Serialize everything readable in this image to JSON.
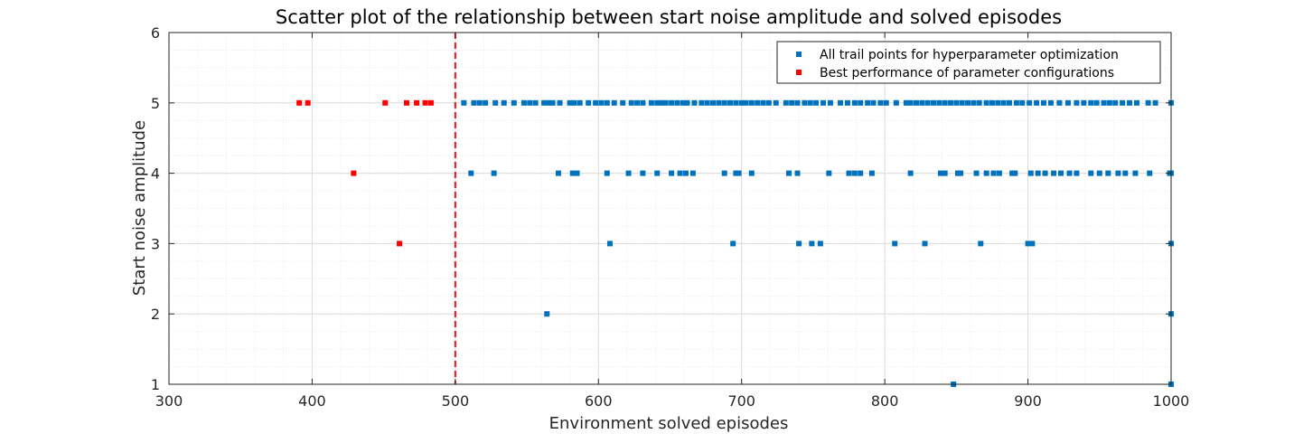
{
  "chart_data": {
    "type": "scatter",
    "title": "Scatter plot of the relationship between start noise amplitude and solved episodes",
    "xlabel": "Environment solved episodes",
    "ylabel": "Start noise amplitude",
    "xlim": [
      300,
      1000
    ],
    "ylim": [
      1,
      6
    ],
    "xticks": [
      "300",
      "400",
      "500",
      "600",
      "700",
      "800",
      "900",
      "1000"
    ],
    "yticks": [
      "1",
      "2",
      "3",
      "4",
      "5",
      "6"
    ],
    "grid": true,
    "minor_grid": true,
    "legend_position": "top-right",
    "reference_line": {
      "x": 500,
      "color": "#e8141b",
      "style": "dashed"
    },
    "series": [
      {
        "name": "All trail points for hyperparameter optimization",
        "color": "#0072bd",
        "points": [
          [
            506,
            5
          ],
          [
            513,
            5
          ],
          [
            517,
            5
          ],
          [
            521,
            5
          ],
          [
            528,
            5
          ],
          [
            534,
            5
          ],
          [
            541,
            5
          ],
          [
            548,
            5
          ],
          [
            552,
            5
          ],
          [
            556,
            5
          ],
          [
            562,
            5
          ],
          [
            565,
            5
          ],
          [
            568,
            5
          ],
          [
            573,
            5
          ],
          [
            580,
            5
          ],
          [
            583,
            5
          ],
          [
            587,
            5
          ],
          [
            593,
            5
          ],
          [
            598,
            5
          ],
          [
            602,
            5
          ],
          [
            606,
            5
          ],
          [
            611,
            5
          ],
          [
            617,
            5
          ],
          [
            623,
            5
          ],
          [
            627,
            5
          ],
          [
            631,
            5
          ],
          [
            637,
            5
          ],
          [
            641,
            5
          ],
          [
            644,
            5
          ],
          [
            647,
            5
          ],
          [
            651,
            5
          ],
          [
            655,
            5
          ],
          [
            659,
            5
          ],
          [
            662,
            5
          ],
          [
            667,
            5
          ],
          [
            672,
            5
          ],
          [
            676,
            5
          ],
          [
            680,
            5
          ],
          [
            684,
            5
          ],
          [
            688,
            5
          ],
          [
            692,
            5
          ],
          [
            696,
            5
          ],
          [
            700,
            5
          ],
          [
            703,
            5
          ],
          [
            707,
            5
          ],
          [
            711,
            5
          ],
          [
            715,
            5
          ],
          [
            719,
            5
          ],
          [
            724,
            5
          ],
          [
            731,
            5
          ],
          [
            735,
            5
          ],
          [
            739,
            5
          ],
          [
            744,
            5
          ],
          [
            748,
            5
          ],
          [
            752,
            5
          ],
          [
            757,
            5
          ],
          [
            762,
            5
          ],
          [
            769,
            5
          ],
          [
            774,
            5
          ],
          [
            779,
            5
          ],
          [
            783,
            5
          ],
          [
            788,
            5
          ],
          [
            792,
            5
          ],
          [
            797,
            5
          ],
          [
            801,
            5
          ],
          [
            808,
            5
          ],
          [
            815,
            5
          ],
          [
            818,
            5
          ],
          [
            822,
            5
          ],
          [
            826,
            5
          ],
          [
            830,
            5
          ],
          [
            834,
            5
          ],
          [
            838,
            5
          ],
          [
            842,
            5
          ],
          [
            846,
            5
          ],
          [
            850,
            5
          ],
          [
            854,
            5
          ],
          [
            858,
            5
          ],
          [
            862,
            5
          ],
          [
            866,
            5
          ],
          [
            871,
            5
          ],
          [
            875,
            5
          ],
          [
            879,
            5
          ],
          [
            883,
            5
          ],
          [
            887,
            5
          ],
          [
            892,
            5
          ],
          [
            896,
            5
          ],
          [
            901,
            5
          ],
          [
            906,
            5
          ],
          [
            911,
            5
          ],
          [
            916,
            5
          ],
          [
            922,
            5
          ],
          [
            928,
            5
          ],
          [
            934,
            5
          ],
          [
            939,
            5
          ],
          [
            944,
            5
          ],
          [
            948,
            5
          ],
          [
            953,
            5
          ],
          [
            957,
            5
          ],
          [
            961,
            5
          ],
          [
            966,
            5
          ],
          [
            971,
            5
          ],
          [
            976,
            5
          ],
          [
            984,
            5
          ],
          [
            989,
            5
          ],
          [
            1000,
            5
          ],
          [
            511,
            4
          ],
          [
            527,
            4
          ],
          [
            572,
            4
          ],
          [
            582,
            4
          ],
          [
            585,
            4
          ],
          [
            606,
            4
          ],
          [
            621,
            4
          ],
          [
            631,
            4
          ],
          [
            641,
            4
          ],
          [
            651,
            4
          ],
          [
            657,
            4
          ],
          [
            661,
            4
          ],
          [
            666,
            4
          ],
          [
            688,
            4
          ],
          [
            696,
            4
          ],
          [
            698,
            4
          ],
          [
            707,
            4
          ],
          [
            733,
            4
          ],
          [
            739,
            4
          ],
          [
            761,
            4
          ],
          [
            775,
            4
          ],
          [
            779,
            4
          ],
          [
            783,
            4
          ],
          [
            791,
            4
          ],
          [
            818,
            4
          ],
          [
            839,
            4
          ],
          [
            842,
            4
          ],
          [
            851,
            4
          ],
          [
            853,
            4
          ],
          [
            864,
            4
          ],
          [
            871,
            4
          ],
          [
            876,
            4
          ],
          [
            880,
            4
          ],
          [
            889,
            4
          ],
          [
            891,
            4
          ],
          [
            902,
            4
          ],
          [
            907,
            4
          ],
          [
            912,
            4
          ],
          [
            918,
            4
          ],
          [
            923,
            4
          ],
          [
            929,
            4
          ],
          [
            934,
            4
          ],
          [
            944,
            4
          ],
          [
            950,
            4
          ],
          [
            956,
            4
          ],
          [
            963,
            4
          ],
          [
            968,
            4
          ],
          [
            975,
            4
          ],
          [
            985,
            4
          ],
          [
            999,
            4
          ],
          [
            1000,
            4
          ],
          [
            608,
            3
          ],
          [
            694,
            3
          ],
          [
            740,
            3
          ],
          [
            749,
            3
          ],
          [
            755,
            3
          ],
          [
            807,
            3
          ],
          [
            828,
            3
          ],
          [
            867,
            3
          ],
          [
            900,
            3
          ],
          [
            903,
            3
          ],
          [
            1000,
            3
          ],
          [
            564,
            2
          ],
          [
            1000,
            2
          ],
          [
            848,
            1
          ],
          [
            1000,
            1
          ]
        ]
      },
      {
        "name": "Best performance of parameter configurations",
        "color": "#ff0000",
        "points": [
          [
            391,
            5
          ],
          [
            397,
            5
          ],
          [
            451,
            5
          ],
          [
            466,
            5
          ],
          [
            473,
            5
          ],
          [
            479,
            5
          ],
          [
            483,
            5
          ],
          [
            429,
            4
          ],
          [
            461,
            3
          ]
        ]
      }
    ]
  }
}
